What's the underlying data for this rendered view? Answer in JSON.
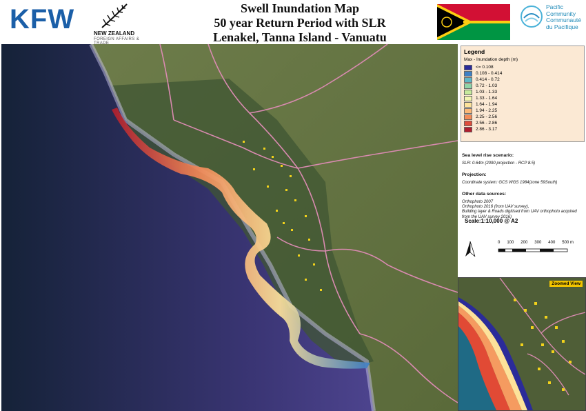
{
  "header": {
    "kfw_logo_text": "KFW",
    "nz_name": "NEW ZEALAND",
    "nz_sub": "FOREIGN AFFAIRS & TRADE",
    "title_line1": "Swell Inundation Map",
    "title_line2": "50 year Return Period with SLR",
    "title_line3": "Lenakel, Tanna Island - Vanuatu",
    "pc_line1": "Pacific",
    "pc_line2": "Community",
    "pc_line3": "Communauté",
    "pc_line4": "du Pacifique"
  },
  "legend": {
    "title": "Legend",
    "subtitle": "Max - Inundation depth (m)",
    "classes": [
      {
        "label": "<= 0.108",
        "color": "#2b2b9a"
      },
      {
        "label": "0.108 - 0.414",
        "color": "#3d7fc4"
      },
      {
        "label": "0.414 - 0.72",
        "color": "#5fb6c7"
      },
      {
        "label": "0.72 - 1.03",
        "color": "#8fd4a8"
      },
      {
        "label": "1.03 - 1.33",
        "color": "#c6ea9c"
      },
      {
        "label": "1.33 - 1.64",
        "color": "#f2f5b0"
      },
      {
        "label": "1.64 - 1.94",
        "color": "#fde29a"
      },
      {
        "label": "1.94 - 2.25",
        "color": "#fbb878"
      },
      {
        "label": "2.25 - 2.56",
        "color": "#f38c59"
      },
      {
        "label": "2.56 - 2.86",
        "color": "#df4e3b"
      },
      {
        "label": "2.86 - 3.17",
        "color": "#b01e2d"
      }
    ]
  },
  "info": {
    "slr_heading": "Sea level rise scenario:",
    "slr_text": "SLR: 0.64m (2090 projection - RCP 8.5)",
    "projection_heading": "Projection:",
    "projection_text": "Coordinate system: GCS WGS 1984(zone 59South)",
    "sources_heading": "Other data sources:",
    "sources_line1": "Orthophoto 2007",
    "sources_line2": "Orthophoto 2016 (from UAV survey),",
    "sources_line3": "Building layer & Roads digitised from UAV orthophoto acquired from the UAV survey 2016)",
    "scale": "Scale:1:10,000 @ A2",
    "scalebar_labels": [
      "0",
      "100",
      "200",
      "300",
      "400",
      "500 m"
    ]
  },
  "inset": {
    "label": "Zoomed View"
  },
  "colors": {
    "ocean_deep": "#1c2b52",
    "ocean_shallow": "#3b3f7a",
    "land": "#5c6b3e",
    "road": "#d98ab0",
    "building": "#f2d21b",
    "kfw_blue": "#1b5fa8"
  }
}
